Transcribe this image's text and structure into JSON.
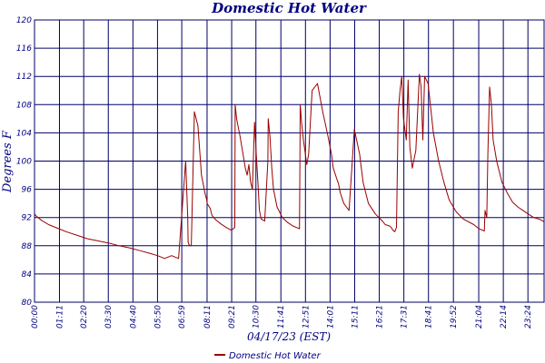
{
  "chart_data": {
    "type": "line",
    "title": "Domestic Hot Water",
    "xlabel": "04/17/23 (EST)",
    "ylabel": "Degrees F",
    "ylim": [
      80,
      120
    ],
    "yticks": [
      80,
      84,
      88,
      92,
      96,
      100,
      104,
      108,
      112,
      116,
      120
    ],
    "ytick_labels": [
      "80",
      "84",
      "88",
      "92",
      "96",
      "100",
      "104",
      "108",
      "112",
      "116",
      "120"
    ],
    "xlim_minutes": [
      0,
      1450
    ],
    "xticks_minutes": [
      0,
      71,
      140,
      210,
      280,
      350,
      419,
      491,
      561,
      630,
      701,
      771,
      841,
      911,
      981,
      1051,
      1121,
      1192,
      1264,
      1334,
      1404
    ],
    "xtick_labels": [
      "00:00",
      "01:11",
      "02:20",
      "03:30",
      "04:40",
      "05:50",
      "06:59",
      "08:11",
      "09:21",
      "10:30",
      "11:41",
      "12:51",
      "14:01",
      "15:11",
      "16:21",
      "17:31",
      "18:41",
      "19:52",
      "21:04",
      "22:14",
      "23:24"
    ],
    "grid": true,
    "colors": {
      "line": "#990000",
      "grid": "#000066",
      "text": "#000080",
      "background": "#ffffff"
    },
    "legend": {
      "position": "bottom-center",
      "entries": [
        "Domestic Hot Water"
      ]
    },
    "series": [
      {
        "name": "Domestic Hot Water",
        "x_minutes": [
          0,
          5,
          20,
          40,
          60,
          90,
          120,
          150,
          180,
          210,
          240,
          270,
          300,
          330,
          350,
          370,
          390,
          410,
          430,
          436,
          437,
          440,
          446,
          455,
          465,
          475,
          485,
          490,
          491,
          500,
          505,
          515,
          530,
          545,
          560,
          570,
          571,
          575,
          585,
          600,
          605,
          610,
          615,
          620,
          626,
          631,
          635,
          640,
          645,
          655,
          664,
          665,
          670,
          675,
          680,
          690,
          705,
          720,
          735,
          750,
          754,
          755,
          756,
          760,
          765,
          775,
          780,
          790,
          805,
          820,
          835,
          845,
          850,
          860,
          865,
          870,
          880,
          895,
          910,
          925,
          935,
          950,
          970,
          990,
          998,
          1010,
          1015,
          1020,
          1025,
          1030,
          1035,
          1040,
          1045,
          1050,
          1058,
          1063,
          1068,
          1075,
          1085,
          1095,
          1100,
          1105,
          1110,
          1120,
          1135,
          1150,
          1165,
          1180,
          1200,
          1220,
          1250,
          1265,
          1280,
          1282,
          1287,
          1290,
          1295,
          1300,
          1305,
          1315,
          1330,
          1345,
          1360,
          1375,
          1390,
          1405,
          1420,
          1440,
          1450
        ],
        "values": [
          92.5,
          92.2,
          91.6,
          91.0,
          90.6,
          90.0,
          89.5,
          89.0,
          88.7,
          88.4,
          88.0,
          87.7,
          87.3,
          86.9,
          86.6,
          86.2,
          86.6,
          86.2,
          100.0,
          92.0,
          88.5,
          88.1,
          88.0,
          107.0,
          105.0,
          98.0,
          95.5,
          94.5,
          94.0,
          93.3,
          92.3,
          91.7,
          91.1,
          90.6,
          90.2,
          90.6,
          108.0,
          106.0,
          103.5,
          99.0,
          98.0,
          99.5,
          97.0,
          96.0,
          105.5,
          101.0,
          97.5,
          93.0,
          91.8,
          91.5,
          100.0,
          106.0,
          103.5,
          99.0,
          96.0,
          93.5,
          92.0,
          91.3,
          90.8,
          90.5,
          90.4,
          98.0,
          108.0,
          105.5,
          103.0,
          99.5,
          101.0,
          110.0,
          111.0,
          107.0,
          103.5,
          101.0,
          99.0,
          97.5,
          96.8,
          95.5,
          94.0,
          93.0,
          104.5,
          101.0,
          97.0,
          94.0,
          92.5,
          91.5,
          91.0,
          90.8,
          90.6,
          90.2,
          90.0,
          90.6,
          107.0,
          110.0,
          112.0,
          106.0,
          103.0,
          111.5,
          102.0,
          99.0,
          101.5,
          112.3,
          110.5,
          103.0,
          112.0,
          111.0,
          104.0,
          100.0,
          97.0,
          94.5,
          92.8,
          91.8,
          91.0,
          90.4,
          90.1,
          93.0,
          92.0,
          101.0,
          110.5,
          108.0,
          103.0,
          100.0,
          97.0,
          95.5,
          94.2,
          93.5,
          93.0,
          92.5,
          92.0,
          91.7,
          91.4
        ]
      }
    ]
  }
}
